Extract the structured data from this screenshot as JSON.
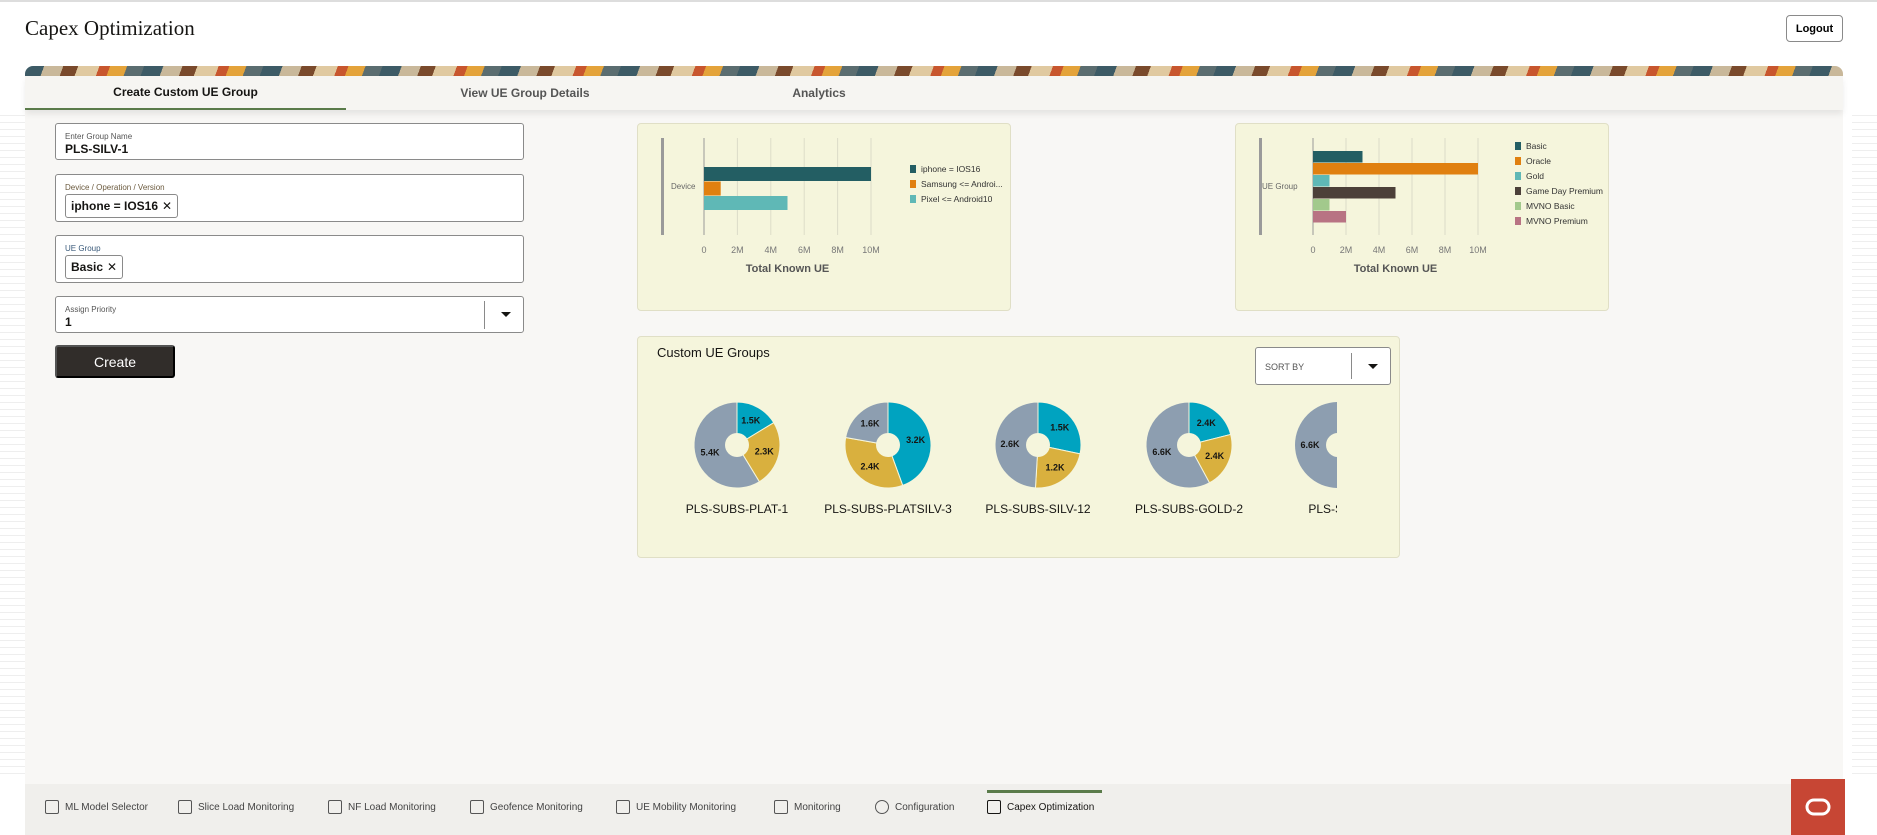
{
  "header": {
    "title": "Capex Optimization",
    "logout_label": "Logout"
  },
  "tabs": [
    {
      "label": "Create Custom UE Group",
      "active": true
    },
    {
      "label": "View UE Group Details",
      "active": false
    },
    {
      "label": "Analytics",
      "active": false
    }
  ],
  "form": {
    "group_name": {
      "label": "Enter Group Name",
      "value": "PLS-SILV-1"
    },
    "device": {
      "label": "Device / Operation / Version",
      "chip": "iphone = IOS16"
    },
    "ue_group": {
      "label": "UE Group",
      "chip": "Basic"
    },
    "priority": {
      "label": "Assign Priority",
      "value": "1"
    },
    "create_label": "Create"
  },
  "chart_data": [
    {
      "type": "bar",
      "orientation": "horizontal",
      "category_label": "Device",
      "xlabel": "Total Known UE",
      "ticks": [
        "0",
        "2M",
        "4M",
        "6M",
        "8M",
        "10M"
      ],
      "xlim": [
        0,
        10000000
      ],
      "grid": true,
      "legend": "right",
      "series": [
        {
          "name": "iphone = IOS16",
          "value": 10000000,
          "color": "#235e63"
        },
        {
          "name": "Samsung <= Androi...",
          "value": 1000000,
          "color": "#e08010"
        },
        {
          "name": "Pixel <= Android10",
          "value": 5000000,
          "color": "#5fb8b6"
        }
      ]
    },
    {
      "type": "bar",
      "orientation": "horizontal",
      "category_label": "UE Group",
      "xlabel": "Total Known UE",
      "ticks": [
        "0",
        "2M",
        "4M",
        "6M",
        "8M",
        "10M"
      ],
      "xlim": [
        0,
        10000000
      ],
      "grid": true,
      "legend": "right",
      "series": [
        {
          "name": "Basic",
          "value": 3000000,
          "color": "#235e63"
        },
        {
          "name": "Oracle",
          "value": 10000000,
          "color": "#e08010"
        },
        {
          "name": "Gold",
          "value": 1000000,
          "color": "#5fb8b6"
        },
        {
          "name": "Game Day Premium",
          "value": 5000000,
          "color": "#4c4039"
        },
        {
          "name": "MVNO Basic",
          "value": 1000000,
          "color": "#a2c98c"
        },
        {
          "name": "MVNO Premium",
          "value": 2000000,
          "color": "#b87383"
        }
      ]
    },
    {
      "type": "pie",
      "title": "Custom UE Groups",
      "sort_label": "SORT BY",
      "colors": {
        "teal": "#00a3c0",
        "gold": "#d9b03e",
        "gray": "#8d9eb0"
      },
      "groups": [
        {
          "name": "PLS-SUBS-PLAT-1",
          "slices": [
            {
              "color": "teal",
              "value": 1.5,
              "label": "1.5K"
            },
            {
              "color": "gold",
              "value": 2.3,
              "label": "2.3K"
            },
            {
              "color": "gray",
              "value": 5.4,
              "label": "5.4K"
            }
          ]
        },
        {
          "name": "PLS-SUBS-PLATSILV-3",
          "slices": [
            {
              "color": "teal",
              "value": 3.2,
              "label": "3.2K"
            },
            {
              "color": "gold",
              "value": 2.4,
              "label": "2.4K"
            },
            {
              "color": "gray",
              "value": 1.6,
              "label": "1.6K"
            }
          ]
        },
        {
          "name": "PLS-SUBS-SILV-12",
          "slices": [
            {
              "color": "teal",
              "value": 1.5,
              "label": "1.5K"
            },
            {
              "color": "gold",
              "value": 1.2,
              "label": "1.2K"
            },
            {
              "color": "gray",
              "value": 2.6,
              "label": "2.6K"
            }
          ]
        },
        {
          "name": "PLS-SUBS-GOLD-2",
          "slices": [
            {
              "color": "teal",
              "value": 2.4,
              "label": "2.4K"
            },
            {
              "color": "gold",
              "value": 2.4,
              "label": "2.4K"
            },
            {
              "color": "gray",
              "value": 6.6,
              "label": "6.6K"
            }
          ]
        },
        {
          "name": "PLS-SUBS",
          "slices": [
            {
              "color": "gray",
              "value": 6.6,
              "label": "6.6K"
            }
          ]
        }
      ]
    }
  ],
  "bottom_nav": [
    {
      "label": "ML Model Selector",
      "icon": "brain-icon"
    },
    {
      "label": "Slice Load Monitoring",
      "icon": "monitor-icon"
    },
    {
      "label": "NF Load Monitoring",
      "icon": "network-icon"
    },
    {
      "label": "Geofence Monitoring",
      "icon": "geofence-icon"
    },
    {
      "label": "UE Mobility Monitoring",
      "icon": "mobile-icon"
    },
    {
      "label": "Monitoring",
      "icon": "chart-icon"
    },
    {
      "label": "Configuration",
      "icon": "gear-icon"
    },
    {
      "label": "Capex Optimization",
      "icon": "chart-icon",
      "active": true
    }
  ]
}
